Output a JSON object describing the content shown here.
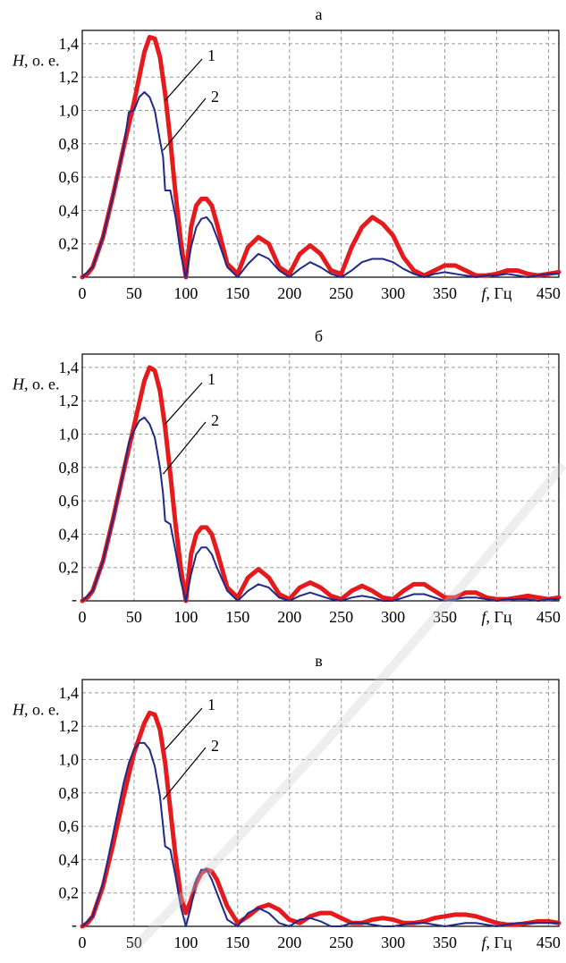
{
  "chart_data": [
    {
      "type": "line",
      "panel_label": "а",
      "ylabel_italic": "H",
      "ylabel_rest": ", о. е.",
      "xlabel_italic": "f",
      "xlabel_rest": ", Гц",
      "xlim": [
        0,
        460
      ],
      "ylim": [
        0,
        1.48
      ],
      "x_ticks": [
        "0",
        "50",
        "100",
        "150",
        "200",
        "250",
        "300",
        "350",
        "450"
      ],
      "y_ticks": [
        "0,2",
        "0,4",
        "0,6",
        "0,8",
        "1,0",
        "1,2",
        "1,4"
      ],
      "y_zero_label": "-",
      "grid": true,
      "curve_labels": [
        "1",
        "2"
      ],
      "series": [
        {
          "x": [
            0,
            5,
            10,
            20,
            30,
            40,
            50,
            60,
            65,
            70,
            75,
            80,
            85,
            90,
            95,
            100,
            105,
            110,
            115,
            120,
            125,
            130,
            140,
            150,
            160,
            170,
            180,
            190,
            200,
            210,
            220,
            230,
            240,
            250,
            260,
            270,
            280,
            290,
            300,
            310,
            320,
            330,
            340,
            350,
            360,
            370,
            380,
            390,
            400,
            410,
            420,
            430,
            440,
            450,
            460
          ],
          "y": [
            0,
            0.02,
            0.06,
            0.24,
            0.5,
            0.78,
            1.05,
            1.35,
            1.44,
            1.43,
            1.32,
            1.1,
            0.82,
            0.5,
            0.22,
            0,
            0.3,
            0.43,
            0.47,
            0.47,
            0.43,
            0.32,
            0.08,
            0.02,
            0.18,
            0.24,
            0.2,
            0.06,
            0.02,
            0.14,
            0.19,
            0.14,
            0.04,
            0.02,
            0.18,
            0.3,
            0.36,
            0.32,
            0.25,
            0.12,
            0.04,
            0.01,
            0.04,
            0.07,
            0.07,
            0.04,
            0.01,
            0.01,
            0.02,
            0.04,
            0.04,
            0.02,
            0.01,
            0.02,
            0.03
          ]
        },
        {
          "x": [
            0,
            10,
            20,
            30,
            40,
            45,
            50,
            55,
            60,
            65,
            70,
            75,
            78,
            80,
            85,
            90,
            95,
            100,
            105,
            110,
            115,
            120,
            125,
            130,
            140,
            150,
            160,
            170,
            180,
            190,
            200,
            210,
            220,
            230,
            240,
            250,
            260,
            270,
            280,
            290,
            300,
            310,
            320,
            330,
            340,
            350,
            360,
            370,
            380,
            390,
            400,
            410,
            420,
            430,
            440,
            450,
            460
          ],
          "y": [
            0,
            0.06,
            0.24,
            0.5,
            0.78,
            0.99,
            1.0,
            1.08,
            1.11,
            1.08,
            1.0,
            0.82,
            0.72,
            0.52,
            0.52,
            0.36,
            0.14,
            0,
            0.18,
            0.3,
            0.35,
            0.36,
            0.32,
            0.24,
            0.06,
            0,
            0.08,
            0.14,
            0.11,
            0.04,
            0,
            0.05,
            0.09,
            0.06,
            0.02,
            0,
            0.04,
            0.09,
            0.11,
            0.11,
            0.09,
            0.05,
            0.02,
            0,
            0.02,
            0.03,
            0.02,
            0.01,
            0,
            0.01,
            0.01,
            0.02,
            0.01,
            0,
            0.01,
            0.02,
            0.02
          ]
        }
      ]
    },
    {
      "type": "line",
      "panel_label": "б",
      "ylabel_italic": "H",
      "ylabel_rest": ", о. е.",
      "xlabel_italic": "f",
      "xlabel_rest": ", Гц",
      "xlim": [
        0,
        460
      ],
      "ylim": [
        0,
        1.48
      ],
      "x_ticks": [
        "0",
        "50",
        "100",
        "150",
        "200",
        "250",
        "300",
        "350",
        "450"
      ],
      "y_ticks": [
        "0,2",
        "0,4",
        "0,6",
        "0,8",
        "1,0",
        "1,2",
        "1,4"
      ],
      "y_zero_label": "-",
      "grid": true,
      "curve_labels": [
        "1",
        "2"
      ],
      "series": [
        {
          "x": [
            0,
            5,
            10,
            20,
            30,
            40,
            50,
            60,
            65,
            70,
            75,
            80,
            85,
            90,
            95,
            100,
            105,
            110,
            115,
            120,
            125,
            130,
            140,
            150,
            160,
            170,
            180,
            190,
            200,
            210,
            220,
            230,
            240,
            250,
            260,
            270,
            280,
            290,
            300,
            310,
            320,
            330,
            340,
            350,
            360,
            370,
            380,
            390,
            400,
            410,
            420,
            430,
            440,
            450,
            460
          ],
          "y": [
            0,
            0.02,
            0.06,
            0.24,
            0.5,
            0.78,
            1.05,
            1.32,
            1.4,
            1.38,
            1.26,
            1.04,
            0.76,
            0.46,
            0.2,
            0,
            0.28,
            0.4,
            0.44,
            0.44,
            0.4,
            0.3,
            0.08,
            0.02,
            0.14,
            0.19,
            0.14,
            0.04,
            0.01,
            0.08,
            0.11,
            0.08,
            0.03,
            0.01,
            0.06,
            0.09,
            0.06,
            0.02,
            0.01,
            0.06,
            0.1,
            0.1,
            0.06,
            0.02,
            0.02,
            0.05,
            0.05,
            0.02,
            0.01,
            0.01,
            0.02,
            0.03,
            0.02,
            0.01,
            0.02
          ]
        },
        {
          "x": [
            0,
            10,
            20,
            30,
            40,
            45,
            50,
            55,
            60,
            65,
            70,
            75,
            78,
            80,
            85,
            90,
            95,
            100,
            105,
            110,
            115,
            120,
            125,
            130,
            140,
            150,
            160,
            170,
            180,
            190,
            200,
            210,
            220,
            230,
            240,
            250,
            260,
            270,
            280,
            290,
            300,
            310,
            320,
            330,
            340,
            350,
            360,
            370,
            380,
            390,
            400,
            410,
            420,
            430,
            440,
            450,
            460
          ],
          "y": [
            0,
            0.06,
            0.24,
            0.5,
            0.78,
            0.95,
            1.02,
            1.08,
            1.1,
            1.06,
            0.98,
            0.8,
            0.64,
            0.48,
            0.46,
            0.3,
            0.12,
            0,
            0.16,
            0.28,
            0.32,
            0.32,
            0.28,
            0.2,
            0.06,
            0,
            0.06,
            0.1,
            0.08,
            0.02,
            0,
            0.03,
            0.05,
            0.03,
            0.01,
            0,
            0.02,
            0.03,
            0.02,
            0,
            0,
            0.02,
            0.04,
            0.04,
            0.02,
            0,
            0.01,
            0.02,
            0.02,
            0.01,
            0,
            0.01,
            0.01,
            0.01,
            0,
            0.01,
            0.01
          ]
        }
      ]
    },
    {
      "type": "line",
      "panel_label": "в",
      "ylabel_italic": "H",
      "ylabel_rest": ", о. е.",
      "xlabel_italic": "f",
      "xlabel_rest": ", Гц",
      "xlim": [
        0,
        460
      ],
      "ylim": [
        0,
        1.48
      ],
      "x_ticks": [
        "0",
        "50",
        "100",
        "150",
        "200",
        "250",
        "300",
        "350",
        "450"
      ],
      "y_ticks": [
        "0,2",
        "0,4",
        "0,6",
        "0,8",
        "1,0",
        "1,2",
        "1,4"
      ],
      "y_zero_label": "-",
      "grid": true,
      "curve_labels": [
        "1",
        "2"
      ],
      "series": [
        {
          "x": [
            0,
            5,
            10,
            20,
            30,
            40,
            50,
            60,
            65,
            70,
            75,
            80,
            85,
            90,
            95,
            100,
            105,
            110,
            115,
            120,
            125,
            130,
            140,
            150,
            160,
            170,
            180,
            190,
            200,
            210,
            220,
            230,
            240,
            250,
            260,
            270,
            280,
            290,
            300,
            310,
            320,
            330,
            340,
            350,
            360,
            370,
            380,
            390,
            400,
            410,
            420,
            430,
            440,
            450,
            460
          ],
          "y": [
            0,
            0.02,
            0.06,
            0.24,
            0.5,
            0.78,
            1.04,
            1.22,
            1.28,
            1.27,
            1.18,
            0.98,
            0.7,
            0.42,
            0.18,
            0.08,
            0.16,
            0.26,
            0.32,
            0.34,
            0.33,
            0.28,
            0.12,
            0.02,
            0.06,
            0.11,
            0.13,
            0.1,
            0.04,
            0.02,
            0.06,
            0.08,
            0.08,
            0.05,
            0.02,
            0.02,
            0.04,
            0.05,
            0.04,
            0.02,
            0.02,
            0.03,
            0.05,
            0.06,
            0.07,
            0.07,
            0.06,
            0.04,
            0.02,
            0.01,
            0.01,
            0.02,
            0.03,
            0.03,
            0.02
          ]
        },
        {
          "x": [
            0,
            10,
            20,
            30,
            40,
            45,
            50,
            55,
            60,
            65,
            70,
            75,
            78,
            80,
            85,
            90,
            95,
            100,
            105,
            110,
            115,
            120,
            125,
            130,
            140,
            150,
            160,
            170,
            180,
            190,
            200,
            210,
            220,
            230,
            240,
            250,
            260,
            270,
            280,
            290,
            300,
            310,
            320,
            330,
            340,
            350,
            360,
            370,
            380,
            390,
            400,
            410,
            420,
            430,
            440,
            450,
            460
          ],
          "y": [
            0,
            0.06,
            0.26,
            0.56,
            0.86,
            0.98,
            1.06,
            1.1,
            1.1,
            1.06,
            0.96,
            0.78,
            0.6,
            0.48,
            0.46,
            0.3,
            0.12,
            0,
            0.12,
            0.28,
            0.34,
            0.34,
            0.28,
            0.2,
            0.04,
            0,
            0.08,
            0.11,
            0.08,
            0.02,
            0,
            0.04,
            0.05,
            0.03,
            0,
            0,
            0.02,
            0.02,
            0.01,
            0,
            0,
            0.01,
            0.02,
            0.02,
            0.01,
            0,
            0.01,
            0.02,
            0.02,
            0.01,
            0,
            0.01,
            0.02,
            0.02,
            0.02,
            0.02,
            0.02
          ]
        }
      ]
    }
  ]
}
